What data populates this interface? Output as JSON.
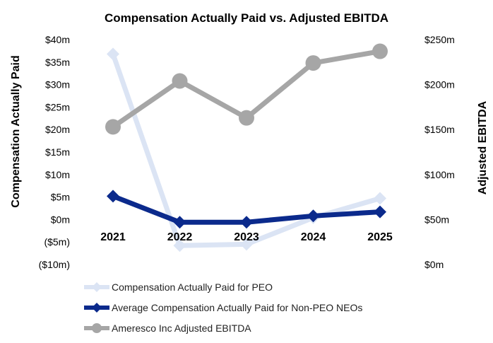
{
  "chart_data": {
    "type": "line",
    "title": "Compensation Actually Paid vs. Adjusted EBITDA",
    "categories": [
      "2021",
      "2022",
      "2023",
      "2024",
      "2025"
    ],
    "y_left": {
      "label": "Compensation Actually Paid",
      "range": [
        -10,
        40
      ],
      "ticks": [
        40,
        35,
        30,
        25,
        20,
        15,
        10,
        5,
        0,
        -5,
        -10
      ],
      "tick_labels": [
        "$40m",
        "$35m",
        "$30m",
        "$25m",
        "$20m",
        "$15m",
        "$10m",
        "$5m",
        "$0m",
        "($5m)",
        "($10m)"
      ]
    },
    "y_right": {
      "label": "Adjusted EBITDA",
      "range": [
        0,
        250
      ],
      "ticks": [
        250,
        200,
        150,
        100,
        50,
        0
      ],
      "tick_labels": [
        "$250m",
        "$200m",
        "$150m",
        "$100m",
        "$50m",
        "$0m"
      ]
    },
    "series": [
      {
        "name": "Compensation Actually Paid for PEO",
        "axis": "left",
        "color": "#dbe4f4",
        "marker": "diamond",
        "values": [
          36.8,
          -5.8,
          -5.5,
          0.4,
          4.7
        ]
      },
      {
        "name": "Average Compensation Actually Paid for Non-PEO NEOs",
        "axis": "left",
        "color": "#0b2a8c",
        "marker": "diamond",
        "values": [
          5.2,
          -0.6,
          -0.6,
          0.8,
          1.7
        ]
      },
      {
        "name": "Ameresco Inc Adjusted EBITDA",
        "axis": "right",
        "color": "#a6a6a6",
        "marker": "circle",
        "values": [
          153,
          204,
          163,
          224,
          237
        ]
      }
    ],
    "legend_position": "bottom"
  }
}
